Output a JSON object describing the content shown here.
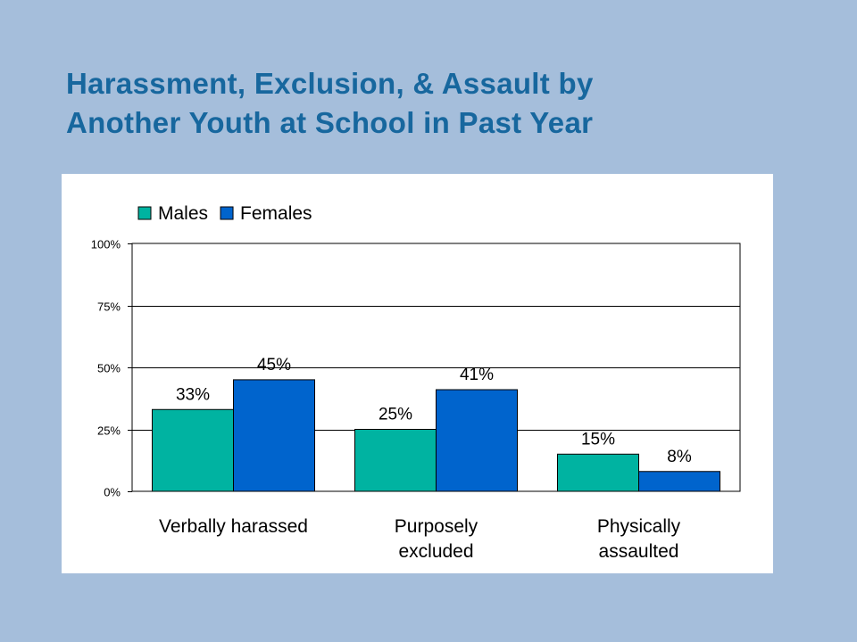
{
  "slide": {
    "title_line1": "Harassment, Exclusion, & Assault by",
    "title_line2": "Another Youth at School in Past Year",
    "background_color": "#a5bedb",
    "title_color": "#17679e"
  },
  "chart_data": {
    "type": "bar",
    "title": "",
    "xlabel": "",
    "ylabel": "",
    "categories": [
      [
        "Verbally harassed"
      ],
      [
        "Purposely",
        "excluded"
      ],
      [
        "Physically",
        "assaulted"
      ]
    ],
    "series": [
      {
        "name": "Males",
        "color": "#00b3a1",
        "values": [
          33,
          25,
          15
        ],
        "labels": [
          "33%",
          "25%",
          "15%"
        ]
      },
      {
        "name": "Females",
        "color": "#0064cd",
        "values": [
          45,
          41,
          8
        ],
        "labels": [
          "45%",
          "41%",
          "8%"
        ]
      }
    ],
    "ylim": [
      0,
      100
    ],
    "yticks": [
      0,
      25,
      50,
      75,
      100
    ],
    "ytick_labels": [
      "0%",
      "25%",
      "50%",
      "75%",
      "100%"
    ],
    "grid": true,
    "legend_position": "top-left"
  }
}
